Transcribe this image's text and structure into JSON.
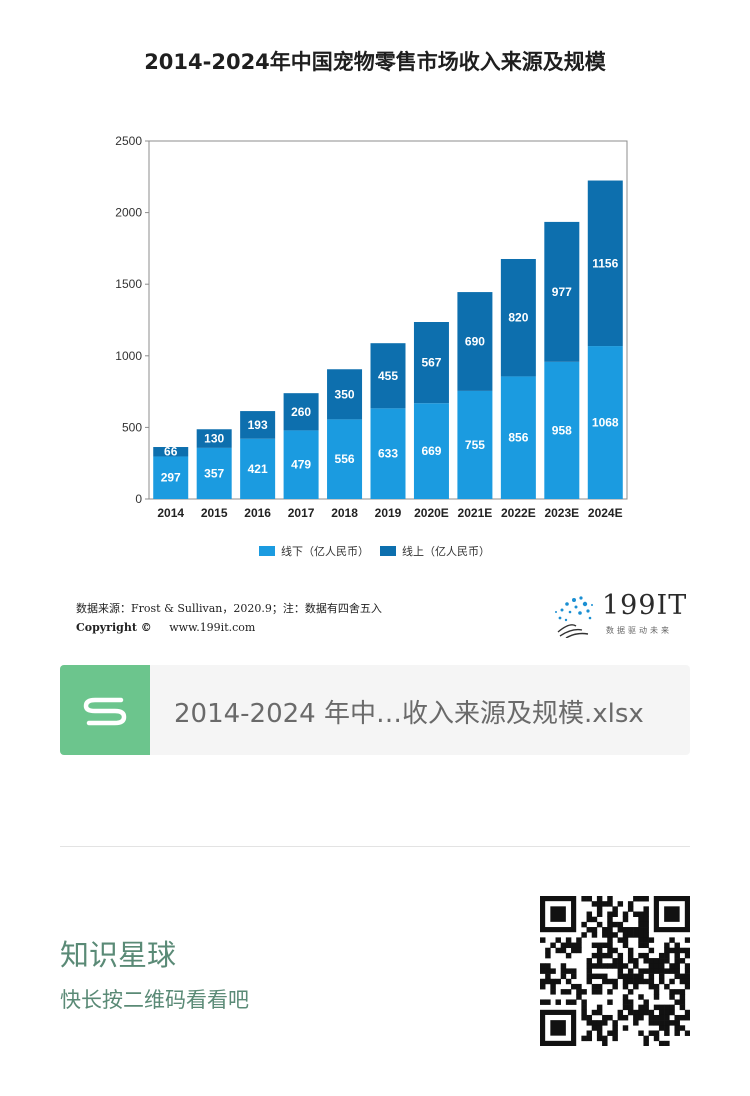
{
  "chart_title": "2014-2024年中国宠物零售市场收入来源及规模",
  "source": {
    "text": "数据来源：Frost & Sullivan，2020.9；注：数据有四舍五入",
    "copyright_label": "Copyright ©",
    "url": "www.199it.com"
  },
  "brand": {
    "name": "199IT",
    "tagline": "数据驱动未来"
  },
  "file": {
    "name": "2014-2024 年中…收入来源及规模.xlsx",
    "icon": "spreadsheet-s-icon"
  },
  "planet": {
    "name": "知识星球",
    "hint": "快长按二维码看看吧"
  },
  "colors": {
    "offline": "#1b9be0",
    "online": "#0d6fae",
    "file_icon_bg": "#6cc58d",
    "planet_text": "#5a8a76"
  },
  "chart_data": {
    "type": "bar",
    "stacked": true,
    "title": "2014-2024年中国宠物零售市场收入来源及规模",
    "categories": [
      "2014",
      "2015",
      "2016",
      "2017",
      "2018",
      "2019",
      "2020E",
      "2021E",
      "2022E",
      "2023E",
      "2024E"
    ],
    "series": [
      {
        "name": "线下（亿人民币）",
        "values": [
          297,
          357,
          421,
          479,
          556,
          633,
          669,
          755,
          856,
          958,
          1068
        ]
      },
      {
        "name": "线上（亿人民币）",
        "values": [
          66,
          130,
          193,
          260,
          350,
          455,
          567,
          690,
          820,
          977,
          1156
        ]
      }
    ],
    "ylim": [
      0,
      2500
    ],
    "yticks": [
      0,
      500,
      1000,
      1500,
      2000,
      2500
    ],
    "grid": false,
    "legend_position": "bottom"
  }
}
